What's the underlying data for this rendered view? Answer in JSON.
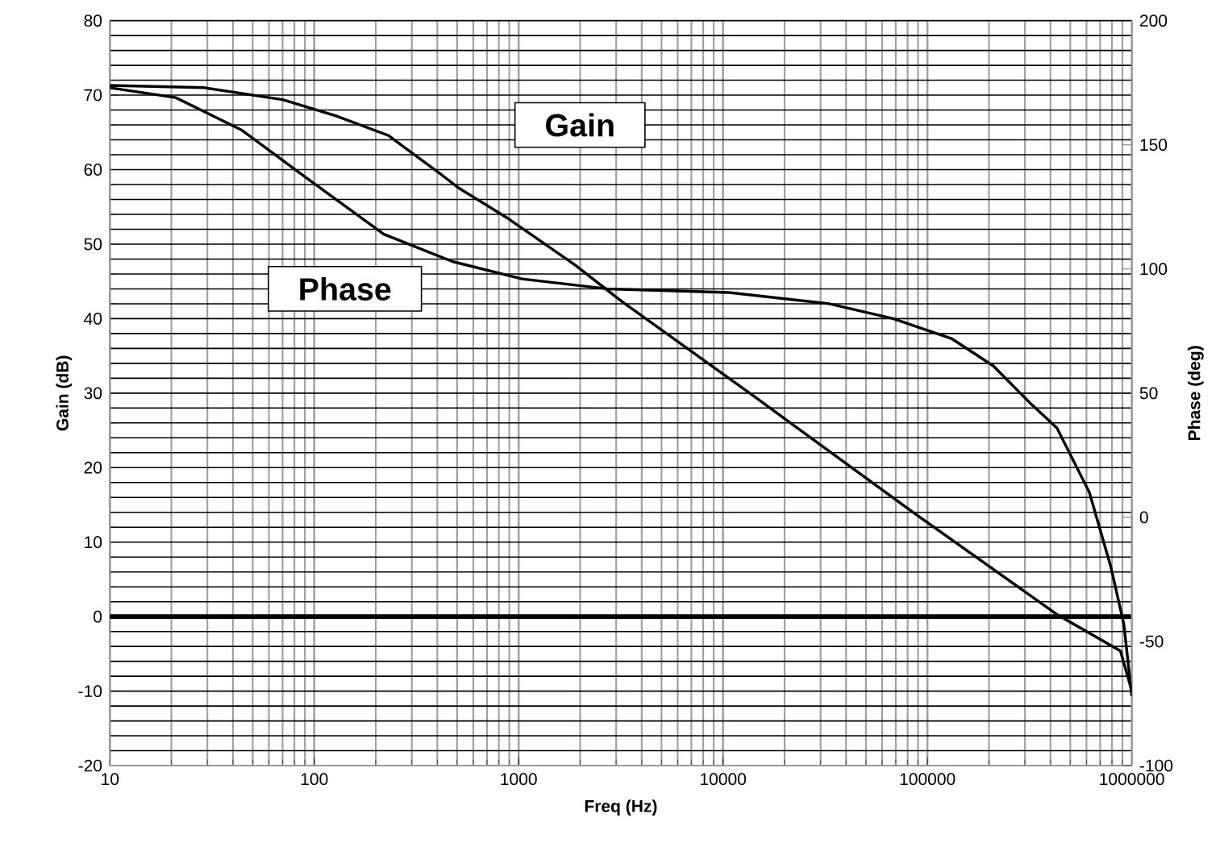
{
  "chart_data": {
    "type": "line",
    "xlabel": "Freq (Hz)",
    "ylabel": "Gain (dB)",
    "y2label": "Phase (deg)",
    "log": "x",
    "grid": true,
    "marker": "none",
    "line_style": "solid",
    "xlim": [
      10,
      1000000
    ],
    "xticks": [
      10,
      100,
      1000,
      10000,
      100000,
      1000000
    ],
    "ylim": [
      -20,
      80
    ],
    "yticks": [
      -20,
      -10,
      0,
      10,
      20,
      30,
      40,
      50,
      60,
      70,
      80
    ],
    "y2lim": [
      -100,
      200
    ],
    "y2ticks": [
      -100,
      -50,
      0,
      50,
      100,
      150,
      200
    ],
    "ref_lines": [
      {
        "axis": "y",
        "value": 0,
        "color": "#000000",
        "line_style": "solid"
      }
    ],
    "series": [
      {
        "name": "Gain",
        "color": "#000000",
        "x": [
          10,
          29,
          70,
          128,
          230,
          420,
          505,
          870,
          1890,
          3200,
          14300,
          86000,
          430000,
          880000,
          1000000
        ],
        "values": [
          71.3,
          71,
          69.4,
          67.2,
          64.6,
          59.3,
          57.6,
          53.6,
          47.2,
          42.3,
          29.5,
          13.9,
          0.3,
          -4.6,
          -10
        ]
      },
      {
        "name": "Phase",
        "color": "#000000",
        "axis": "y2",
        "x": [
          10,
          21,
          44,
          94,
          219,
          474,
          1040,
          2710,
          10700,
          33000,
          68000,
          131000,
          210000,
          318000,
          430000,
          620000,
          790000,
          914000,
          1000000
        ],
        "values": [
          173,
          169,
          156,
          136,
          114,
          103,
          96,
          92,
          90.5,
          86,
          80,
          72,
          61,
          46,
          36,
          10,
          -20,
          -43,
          -72
        ]
      }
    ]
  }
}
